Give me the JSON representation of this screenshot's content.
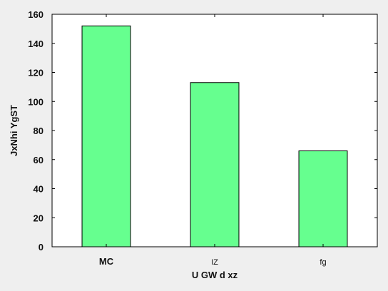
{
  "chart_data": {
    "type": "bar",
    "categories": [
      "MC",
      "IZ",
      "fg"
    ],
    "category_label_bold": [
      true,
      false,
      false
    ],
    "values": [
      152,
      113,
      66
    ],
    "xlabel": "U GW d xz",
    "ylabel": "JxNhi YgST",
    "ylim": [
      0,
      160
    ],
    "yticks": [
      0,
      20,
      40,
      60,
      80,
      100,
      120,
      140,
      160
    ],
    "grid": false,
    "bar_color": "#66ff8f",
    "background_color": "#efefef",
    "plot_background_color": "#ffffff"
  }
}
